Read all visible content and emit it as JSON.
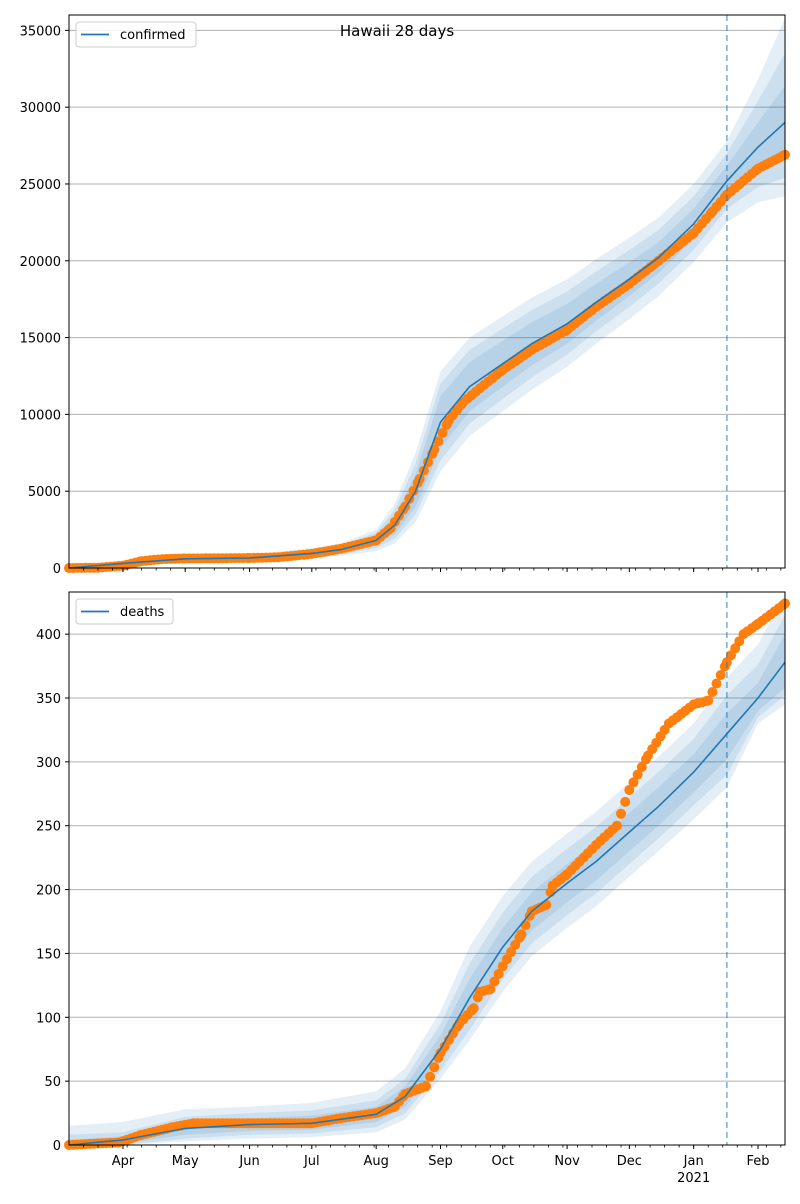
{
  "title": "Hawaii 28 days",
  "colors": {
    "model": "#1f77b4",
    "observed": "#ff7f0e",
    "band": "#1f77b4",
    "grid": "#b0b0b0",
    "forecast_line": "#1f77b4"
  },
  "x_axis": {
    "range": [
      "2020-03-06",
      "2021-02-14"
    ],
    "month_ticks": [
      {
        "label": "Apr",
        "date": "2020-04-01"
      },
      {
        "label": "May",
        "date": "2020-05-01"
      },
      {
        "label": "Jun",
        "date": "2020-06-01"
      },
      {
        "label": "Jul",
        "date": "2020-07-01"
      },
      {
        "label": "Aug",
        "date": "2020-08-01"
      },
      {
        "label": "Sep",
        "date": "2020-09-01"
      },
      {
        "label": "Oct",
        "date": "2020-10-01"
      },
      {
        "label": "Nov",
        "date": "2020-11-01"
      },
      {
        "label": "Dec",
        "date": "2020-12-01"
      },
      {
        "label": "Jan",
        "date": "2021-01-01"
      },
      {
        "label": "Feb",
        "date": "2021-02-01"
      }
    ],
    "year_label": "2021",
    "forecast_start": "2021-01-17"
  },
  "chart_data": [
    {
      "type": "line",
      "legend": "confirmed",
      "legend_position": "top-left",
      "grid": "horizontal",
      "ylim": [
        0,
        36000
      ],
      "yticks": [
        0,
        5000,
        10000,
        15000,
        20000,
        25000,
        30000,
        35000
      ],
      "model": {
        "x": [
          "2020-03-06",
          "2020-04-01",
          "2020-05-01",
          "2020-06-01",
          "2020-07-01",
          "2020-07-15",
          "2020-08-01",
          "2020-08-10",
          "2020-08-20",
          "2020-09-01",
          "2020-09-15",
          "2020-10-01",
          "2020-10-15",
          "2020-11-01",
          "2020-11-15",
          "2020-12-01",
          "2020-12-15",
          "2021-01-01",
          "2021-01-17",
          "2021-02-01",
          "2021-02-14"
        ],
        "y": [
          0,
          300,
          600,
          650,
          950,
          1200,
          1800,
          2800,
          5000,
          9500,
          11800,
          13300,
          14600,
          15900,
          17300,
          18800,
          20200,
          22400,
          25200,
          27400,
          29000
        ]
      },
      "bands": [
        {
          "lo": [
            0,
            200,
            500,
            550,
            800,
            1000,
            1500,
            2200,
            4000,
            7800,
            10200,
            11800,
            13200,
            14600,
            16100,
            17700,
            19200,
            21400,
            24200,
            25800,
            26600
          ],
          "hi": [
            0,
            400,
            700,
            750,
            1100,
            1400,
            2100,
            3400,
            6100,
            11200,
            13400,
            14800,
            16000,
            17200,
            18500,
            19900,
            21200,
            23400,
            26200,
            29000,
            31400
          ]
        },
        {
          "lo": [
            0,
            150,
            450,
            500,
            700,
            900,
            1300,
            1900,
            3500,
            7000,
            9400,
            11000,
            12400,
            13900,
            15400,
            17000,
            18500,
            20700,
            23400,
            24800,
            25400
          ],
          "hi": [
            0,
            450,
            750,
            800,
            1200,
            1500,
            2300,
            3800,
            6800,
            12000,
            14200,
            15600,
            16800,
            18000,
            19300,
            20700,
            22000,
            24200,
            27000,
            30400,
            33500
          ]
        },
        {
          "lo": [
            0,
            100,
            400,
            450,
            600,
            800,
            1100,
            1600,
            3000,
            6300,
            8600,
            10200,
            11600,
            13100,
            14600,
            16200,
            17700,
            19900,
            22500,
            23800,
            24200
          ],
          "hi": [
            0,
            500,
            800,
            850,
            1300,
            1600,
            2500,
            4200,
            7500,
            12800,
            15000,
            16400,
            17600,
            18800,
            20100,
            21500,
            22800,
            25000,
            27800,
            31800,
            35800
          ]
        }
      ],
      "observed": {
        "x": [
          "2020-03-06",
          "2020-03-20",
          "2020-04-01",
          "2020-04-10",
          "2020-04-20",
          "2020-05-01",
          "2020-06-01",
          "2020-06-15",
          "2020-07-01",
          "2020-07-15",
          "2020-08-01",
          "2020-08-08",
          "2020-08-15",
          "2020-08-22",
          "2020-08-29",
          "2020-09-05",
          "2020-09-12",
          "2020-09-20",
          "2020-10-01",
          "2020-10-15",
          "2020-11-01",
          "2020-11-15",
          "2020-12-01",
          "2020-12-15",
          "2021-01-01",
          "2021-01-10",
          "2021-01-17",
          "2021-01-25",
          "2021-02-01",
          "2021-02-14"
        ],
        "y": [
          0,
          20,
          150,
          450,
          580,
          620,
          650,
          700,
          920,
          1250,
          1800,
          2600,
          4000,
          5800,
          7700,
          9600,
          10800,
          11700,
          12900,
          14200,
          15500,
          17000,
          18500,
          20000,
          21800,
          23200,
          24300,
          25200,
          26000,
          26900
        ]
      }
    },
    {
      "type": "line",
      "legend": "deaths",
      "legend_position": "top-left",
      "grid": "horizontal",
      "ylim": [
        0,
        433
      ],
      "yticks": [
        0,
        50,
        100,
        150,
        200,
        250,
        300,
        350,
        400
      ],
      "model": {
        "x": [
          "2020-03-06",
          "2020-04-01",
          "2020-05-01",
          "2020-06-01",
          "2020-07-01",
          "2020-08-01",
          "2020-08-15",
          "2020-09-01",
          "2020-09-15",
          "2020-10-01",
          "2020-10-15",
          "2020-11-01",
          "2020-11-15",
          "2020-12-01",
          "2020-12-15",
          "2021-01-01",
          "2021-01-17",
          "2021-02-01",
          "2021-02-14"
        ],
        "y": [
          0,
          4,
          13,
          16,
          17,
          24,
          38,
          75,
          115,
          155,
          183,
          205,
          222,
          245,
          265,
          292,
          322,
          350,
          378
        ]
      },
      "bands": [
        {
          "lo": [
            0,
            1,
            8,
            11,
            12,
            18,
            30,
            65,
            100,
            140,
            168,
            190,
            207,
            230,
            250,
            276,
            302,
            340,
            358
          ],
          "hi": [
            4,
            7,
            18,
            21,
            23,
            30,
            46,
            86,
            130,
            170,
            198,
            220,
            237,
            260,
            280,
            306,
            338,
            362,
            400
          ]
        },
        {
          "lo": [
            0,
            0,
            5,
            8,
            9,
            14,
            25,
            58,
            90,
            130,
            158,
            180,
            197,
            220,
            240,
            266,
            290,
            335,
            352
          ],
          "hi": [
            8,
            10,
            22,
            25,
            27,
            35,
            52,
            95,
            142,
            182,
            210,
            232,
            249,
            272,
            292,
            318,
            352,
            376,
            415
          ]
        },
        {
          "lo": [
            0,
            0,
            3,
            5,
            6,
            10,
            20,
            52,
            82,
            120,
            148,
            170,
            187,
            210,
            230,
            255,
            280,
            330,
            345
          ],
          "hi": [
            15,
            18,
            28,
            30,
            33,
            42,
            60,
            105,
            155,
            195,
            222,
            244,
            261,
            284,
            304,
            330,
            366,
            392,
            432
          ]
        }
      ],
      "observed": {
        "x": [
          "2020-03-06",
          "2020-03-30",
          "2020-04-10",
          "2020-04-25",
          "2020-05-05",
          "2020-06-01",
          "2020-07-01",
          "2020-07-15",
          "2020-08-01",
          "2020-08-10",
          "2020-08-15",
          "2020-08-25",
          "2020-09-01",
          "2020-09-10",
          "2020-09-17",
          "2020-09-20",
          "2020-09-25",
          "2020-10-01",
          "2020-10-10",
          "2020-10-15",
          "2020-10-22",
          "2020-10-25",
          "2020-11-01",
          "2020-11-15",
          "2020-11-25",
          "2020-12-01",
          "2020-12-10",
          "2020-12-20",
          "2021-01-01",
          "2021-01-08",
          "2021-01-17",
          "2021-01-25",
          "2021-02-01",
          "2021-02-14"
        ],
        "y": [
          0,
          2,
          8,
          14,
          17,
          17,
          17,
          21,
          25,
          30,
          40,
          46,
          72,
          95,
          107,
          120,
          122,
          140,
          165,
          183,
          188,
          203,
          212,
          235,
          250,
          278,
          305,
          330,
          345,
          348,
          378,
          400,
          408,
          424
        ]
      }
    }
  ]
}
